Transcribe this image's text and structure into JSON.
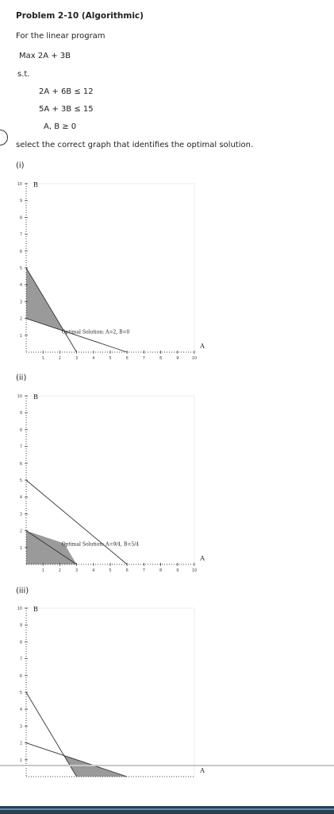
{
  "problem": {
    "title": "Problem 2-10 (Algorithmic)",
    "intro": "For the linear program",
    "objective": "Max 2A + 3B",
    "st": "s.t.",
    "constraints": [
      "2A + 6B ≤ 12",
      "5A + 3B ≤ 15",
      "A, B ≥ 0"
    ],
    "instruction": "select the correct graph that identifies the optimal solution."
  },
  "options": [
    {
      "label": "(i)",
      "annotation": "Optimal Solution: A=2, B=0"
    },
    {
      "label": "(ii)",
      "annotation": "Optimal Solution: A=9/4, B=5/4"
    },
    {
      "label": "(iii)",
      "annotation": ""
    }
  ],
  "chart_data": [
    {
      "type": "line",
      "xlabel": "A",
      "ylabel": "B",
      "xlim": [
        0,
        10
      ],
      "ylim": [
        0,
        10
      ],
      "x_ticks": [
        "1",
        "2",
        "3",
        "4",
        "5",
        "6",
        "7",
        "8",
        "9",
        "10"
      ],
      "y_ticks": [
        "1",
        "2",
        "3",
        "4",
        "5",
        "6",
        "7",
        "8",
        "9",
        "10"
      ],
      "lines": [
        {
          "points": [
            [
              0,
              5
            ],
            [
              3,
              0
            ]
          ]
        },
        {
          "points": [
            [
              0,
              2
            ],
            [
              6,
              0
            ]
          ]
        }
      ],
      "shaded_region": [
        [
          0,
          2
        ],
        [
          0,
          5
        ],
        [
          2.25,
          1.25
        ]
      ],
      "annotation": "Optimal Solution: A=2, B=0"
    },
    {
      "type": "line",
      "xlabel": "A",
      "ylabel": "B",
      "xlim": [
        0,
        10
      ],
      "ylim": [
        0,
        10
      ],
      "x_ticks": [
        "1",
        "2",
        "3",
        "4",
        "5",
        "6",
        "7",
        "8",
        "9",
        "10"
      ],
      "y_ticks": [
        "1",
        "2",
        "3",
        "4",
        "5",
        "6",
        "7",
        "8",
        "9",
        "10"
      ],
      "lines": [
        {
          "points": [
            [
              0,
              5
            ],
            [
              6,
              0
            ]
          ]
        },
        {
          "points": [
            [
              0,
              2
            ],
            [
              3,
              0
            ]
          ]
        }
      ],
      "shaded_region": [
        [
          0,
          0
        ],
        [
          0,
          2
        ],
        [
          2.25,
          1.25
        ],
        [
          3,
          0
        ]
      ],
      "annotation": "Optimal Solution: A=9/4, B=5/4"
    },
    {
      "type": "line",
      "xlabel": "A",
      "ylabel": "B",
      "xlim": [
        0,
        10
      ],
      "ylim": [
        0,
        10
      ],
      "y_ticks": [
        "1",
        "2",
        "3",
        "4",
        "5",
        "6",
        "7",
        "8",
        "9",
        "10"
      ],
      "lines": [
        {
          "points": [
            [
              0,
              5
            ],
            [
              3,
              0
            ]
          ]
        },
        {
          "points": [
            [
              0,
              2
            ],
            [
              6,
              0
            ]
          ]
        }
      ],
      "shaded_region": [
        [
          2.25,
          1.25
        ],
        [
          3,
          0
        ],
        [
          6,
          0
        ]
      ],
      "annotation": ""
    }
  ]
}
